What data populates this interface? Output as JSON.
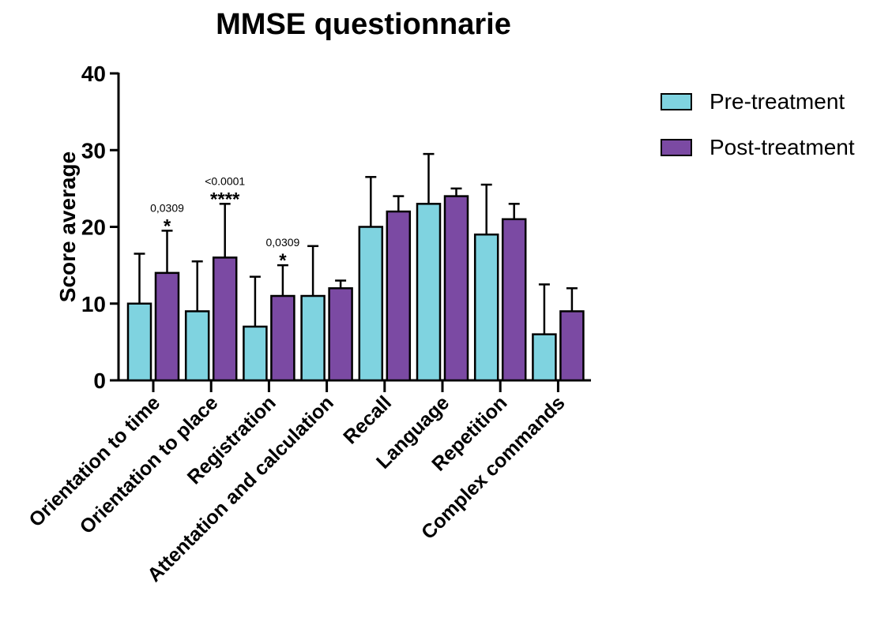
{
  "chart_data": {
    "type": "bar",
    "title": "MMSE questionnarie",
    "xlabel": "",
    "ylabel": "Score average",
    "ylim": [
      0,
      40
    ],
    "yticks": [
      "0",
      "10",
      "20",
      "30",
      "40"
    ],
    "yticks_values": [
      0,
      10,
      20,
      30,
      40
    ],
    "categories": [
      "Orientation to time",
      "Orientation to place",
      "Registration",
      "Attentation and calculation",
      "Recall",
      "Language",
      "Repetition",
      "Complex commands"
    ],
    "series": [
      {
        "name": "Pre-treatment",
        "color": "#7fd3e0",
        "values": [
          10,
          9,
          7,
          11,
          20,
          23,
          19,
          6
        ],
        "error_upper": [
          16.5,
          15.5,
          13.5,
          17.5,
          26.5,
          29.5,
          25.5,
          12.5
        ]
      },
      {
        "name": "Post-treatment",
        "color": "#7b4aa3",
        "values": [
          14,
          16,
          11,
          12,
          22,
          24,
          21,
          9
        ],
        "error_upper": [
          19.5,
          23,
          15,
          13,
          24,
          25,
          23,
          12
        ]
      }
    ],
    "annotations": [
      {
        "category_index": 0,
        "p_value": "0,0309",
        "stars": "*"
      },
      {
        "category_index": 1,
        "p_value": "<0.0001",
        "stars": "****"
      },
      {
        "category_index": 2,
        "p_value": "0,0309",
        "stars": "*"
      }
    ],
    "grid": false,
    "legend_position": "top-right"
  }
}
